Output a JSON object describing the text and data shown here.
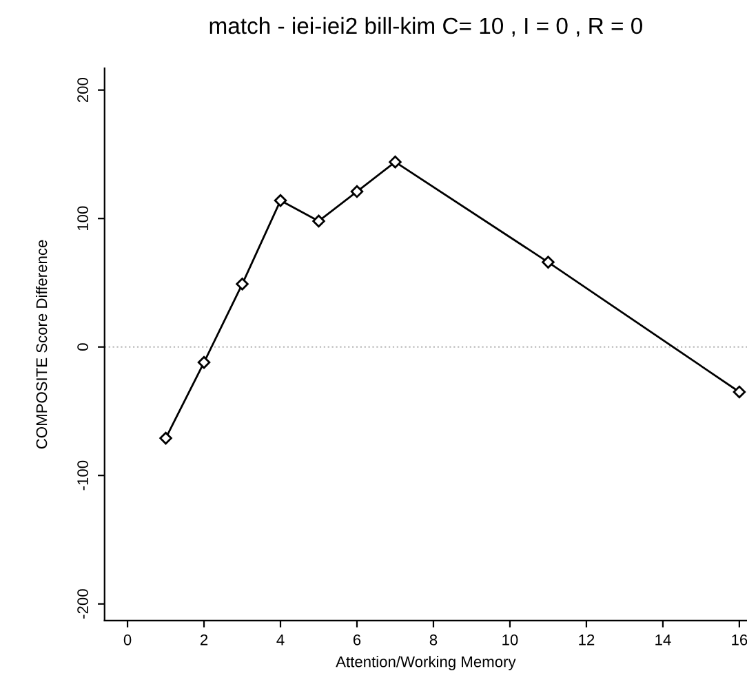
{
  "chart_data": {
    "type": "line",
    "title": "match - iei-iei2 bill-kim C= 10 , I = 0 , R = 0",
    "xlabel": "Attention/Working Memory",
    "ylabel": "COMPOSITE Score Difference",
    "x": [
      1,
      2,
      3,
      4,
      5,
      6,
      7,
      11,
      16
    ],
    "series": [
      {
        "color": "#000000",
        "values": [
          -71,
          -12,
          49,
          114,
          98,
          121,
          144,
          66,
          -35
        ]
      }
    ],
    "xlim": [
      -0.6,
      16.2
    ],
    "ylim": [
      -213,
      217
    ],
    "xticks": [
      0,
      2,
      4,
      6,
      8,
      10,
      12,
      14,
      16
    ],
    "yticks": [
      -200,
      -100,
      0,
      100,
      200
    ],
    "ref_lines": [
      {
        "axis": "y",
        "value": 0,
        "color": "#bbbbbb",
        "line_style": "dotted"
      }
    ],
    "marker": "diamond",
    "line_style": "solid",
    "grid": false,
    "legend": false
  }
}
